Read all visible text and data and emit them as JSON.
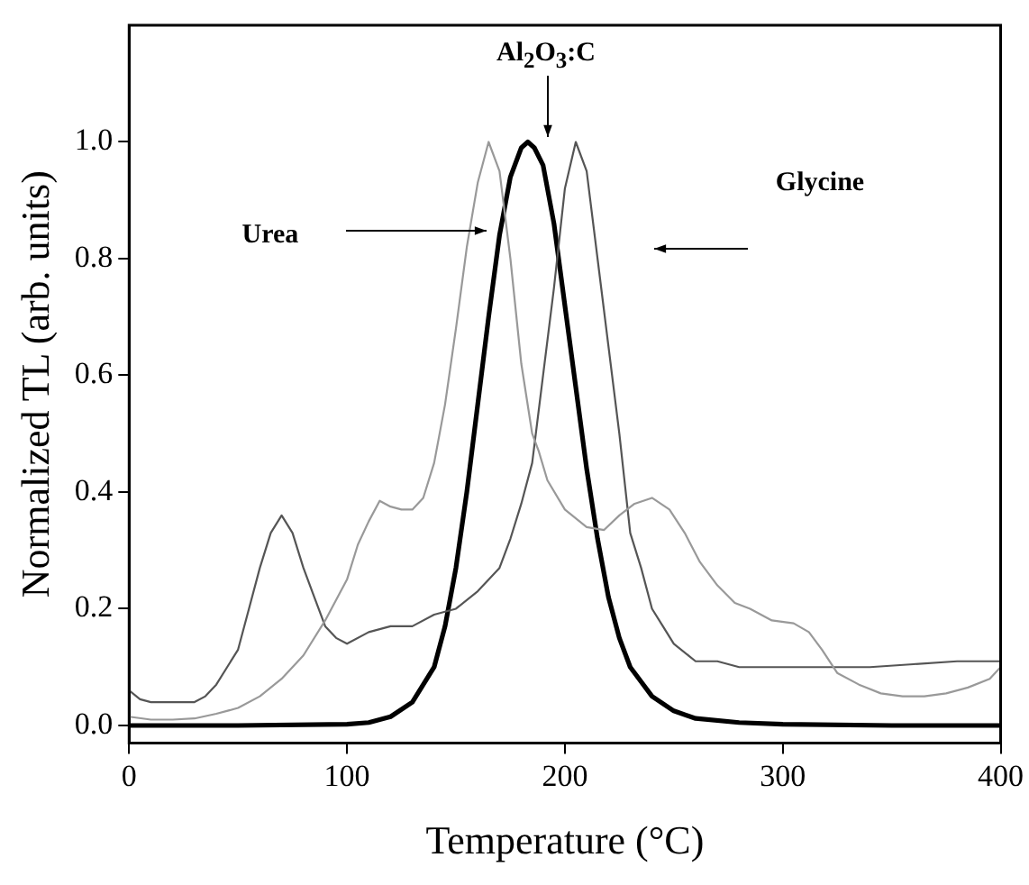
{
  "chart_data": {
    "type": "line",
    "xlabel": "Temperature (°C)",
    "ylabel": "Normalized TL (arb. units)",
    "xlim": [
      0,
      400
    ],
    "xticks": [
      0,
      100,
      200,
      300,
      400
    ],
    "ylim": [
      -0.03,
      1.2
    ],
    "yticks": [
      {
        "value": 0,
        "label": "0.0"
      },
      0.2,
      0.4,
      0.6,
      0.8,
      {
        "value": 1,
        "label": "1.0"
      }
    ],
    "grid": false,
    "legend": false,
    "marker": "none",
    "line_style": "solid",
    "annotations": [
      "Urea",
      "Glycine",
      "Al$_{2}$O$_{3}$:C"
    ],
    "series": [
      {
        "color": "#999999",
        "x": [
          0,
          10,
          20,
          30,
          40,
          50,
          60,
          70,
          80,
          90,
          100,
          105,
          110,
          115,
          120,
          125,
          130,
          135,
          140,
          145,
          150,
          155,
          160,
          165,
          170,
          175,
          180,
          185,
          188,
          192,
          200,
          210,
          218,
          225,
          232,
          240,
          248,
          255,
          262,
          270,
          278,
          285,
          295,
          305,
          312,
          318,
          325,
          335,
          345,
          355,
          365,
          375,
          385,
          395,
          400
        ],
        "values": [
          0.015,
          0.01,
          0.01,
          0.012,
          0.02,
          0.03,
          0.05,
          0.08,
          0.12,
          0.18,
          0.25,
          0.31,
          0.35,
          0.385,
          0.375,
          0.37,
          0.37,
          0.39,
          0.45,
          0.55,
          0.68,
          0.82,
          0.93,
          1.0,
          0.95,
          0.8,
          0.62,
          0.5,
          0.47,
          0.42,
          0.37,
          0.34,
          0.335,
          0.36,
          0.38,
          0.39,
          0.37,
          0.33,
          0.28,
          0.24,
          0.21,
          0.2,
          0.18,
          0.175,
          0.16,
          0.13,
          0.09,
          0.07,
          0.055,
          0.05,
          0.05,
          0.055,
          0.065,
          0.08,
          0.1
        ]
      },
      {
        "color": "#555555",
        "x": [
          0,
          5,
          10,
          20,
          30,
          35,
          40,
          45,
          50,
          55,
          60,
          65,
          70,
          75,
          80,
          85,
          90,
          95,
          100,
          110,
          120,
          130,
          140,
          150,
          160,
          170,
          175,
          180,
          185,
          190,
          195,
          200,
          205,
          210,
          215,
          220,
          225,
          230,
          235,
          240,
          245,
          250,
          260,
          270,
          280,
          300,
          320,
          340,
          360,
          380,
          400
        ],
        "values": [
          0.06,
          0.045,
          0.04,
          0.04,
          0.04,
          0.05,
          0.07,
          0.1,
          0.13,
          0.2,
          0.27,
          0.33,
          0.36,
          0.33,
          0.27,
          0.22,
          0.17,
          0.15,
          0.14,
          0.16,
          0.17,
          0.17,
          0.19,
          0.2,
          0.23,
          0.27,
          0.32,
          0.38,
          0.45,
          0.6,
          0.75,
          0.92,
          1.0,
          0.95,
          0.8,
          0.65,
          0.5,
          0.33,
          0.27,
          0.2,
          0.17,
          0.14,
          0.11,
          0.11,
          0.1,
          0.1,
          0.1,
          0.1,
          0.105,
          0.11,
          0.11
        ]
      },
      {
        "color": "#000000",
        "x": [
          0,
          50,
          100,
          110,
          120,
          130,
          140,
          145,
          150,
          155,
          160,
          165,
          170,
          175,
          180,
          183,
          186,
          190,
          195,
          200,
          205,
          210,
          215,
          220,
          225,
          230,
          240,
          250,
          260,
          280,
          300,
          350,
          400
        ],
        "values": [
          0.0,
          0.0,
          0.002,
          0.005,
          0.015,
          0.04,
          0.1,
          0.17,
          0.27,
          0.4,
          0.55,
          0.7,
          0.84,
          0.94,
          0.99,
          1.0,
          0.99,
          0.96,
          0.86,
          0.72,
          0.58,
          0.44,
          0.32,
          0.22,
          0.15,
          0.1,
          0.05,
          0.025,
          0.012,
          0.005,
          0.002,
          0.0,
          0.0
        ]
      }
    ]
  }
}
